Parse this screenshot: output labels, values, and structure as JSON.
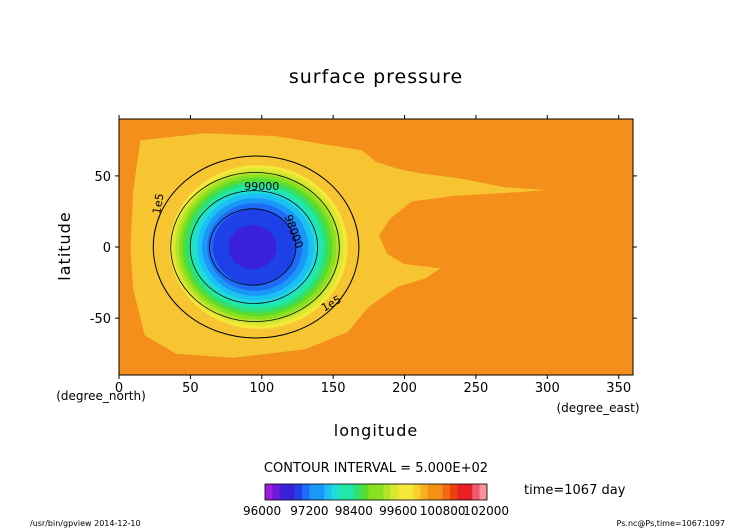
{
  "chart_data": {
    "type": "heatmap",
    "title": "surface pressure",
    "xlabel": "longitude",
    "ylabel": "latitude",
    "x_unit": "(degree_east)",
    "y_unit": "(degree_north)",
    "xlim": [
      0,
      360
    ],
    "ylim": [
      -90,
      90
    ],
    "x_ticks": [
      0,
      50,
      100,
      150,
      200,
      250,
      300,
      350
    ],
    "y_ticks": [
      -50,
      0,
      50
    ],
    "contour_interval_text": "CONTOUR INTERVAL = 5.000E+02",
    "time_text": "time=1067 day",
    "contour_labels": [
      {
        "text": "99000",
        "x": 100,
        "y": 40,
        "rotate": 0
      },
      {
        "text": "98000",
        "x": 120,
        "y": 10,
        "rotate": 70
      },
      {
        "text": "1e5",
        "x": 30,
        "y": 30,
        "rotate": -80
      },
      {
        "text": "1e5",
        "x": 150,
        "y": -42,
        "rotate": -30
      }
    ],
    "low_center": {
      "x": 92,
      "y": 0,
      "value": 96200
    },
    "colorbar": {
      "vmin": 96000,
      "vmax": 102000,
      "step": 200,
      "tick_labels": [
        "96000",
        "97200",
        "98400",
        "99600",
        "100800",
        "102000"
      ],
      "tick_values": [
        96000,
        97200,
        98400,
        99600,
        100800,
        102000
      ]
    },
    "colors": {
      "background_field": "#f58f1b",
      "plateau": "#f7c531",
      "colormap": [
        "#9b20e0",
        "#6a1ad8",
        "#3a20d8",
        "#1d40e8",
        "#1e6cf5",
        "#1a98f8",
        "#1cc0f4",
        "#20dcd8",
        "#20e8a8",
        "#30e070",
        "#58dc30",
        "#88e020",
        "#b4e428",
        "#dce830",
        "#f4e83a",
        "#f8d030",
        "#f8b01c",
        "#f49018",
        "#f06a14",
        "#ec4010",
        "#e82024",
        "#f05a70",
        "#f890a0"
      ]
    },
    "footer_left": "/usr/bin/gpview   2014-12-10",
    "footer_right": "Ps.nc@Ps,time=1067:1097"
  }
}
